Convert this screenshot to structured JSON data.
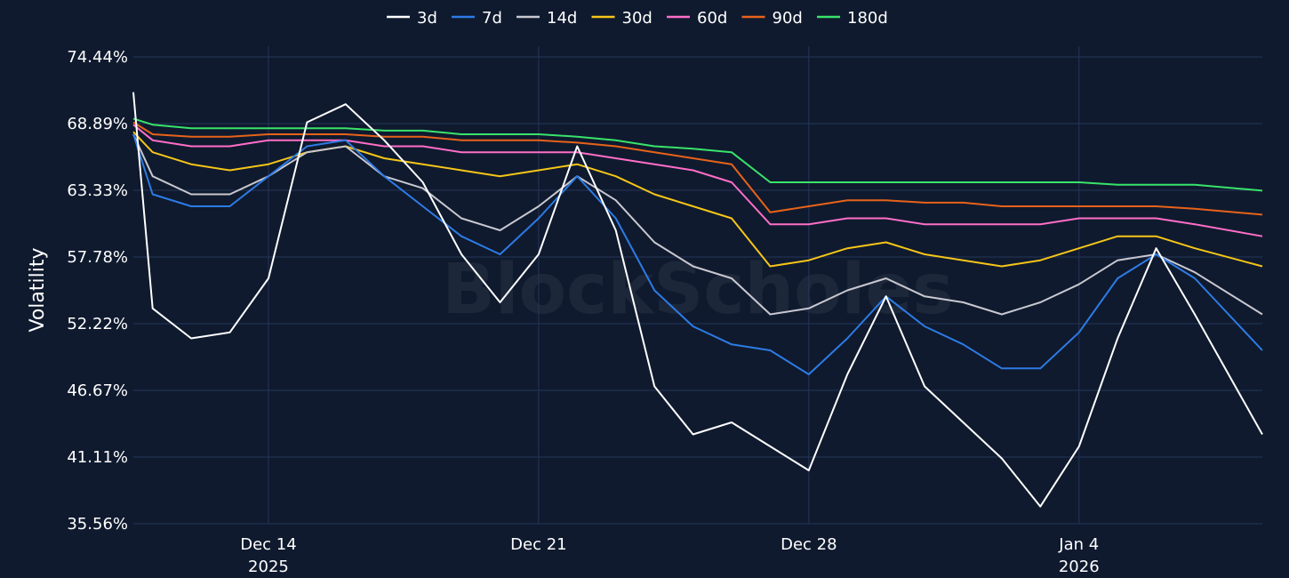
{
  "chart_data": {
    "type": "line",
    "title": "",
    "xlabel": "",
    "ylabel": "Volatility",
    "watermark": "BlockScholes",
    "legend_position": "top-center",
    "grid": true,
    "x": [
      "2025-12-10",
      "2025-12-11",
      "2025-12-12",
      "2025-12-13",
      "2025-12-14",
      "2025-12-15",
      "2025-12-16",
      "2025-12-17",
      "2025-12-18",
      "2025-12-19",
      "2025-12-20",
      "2025-12-21",
      "2025-12-22",
      "2025-12-23",
      "2025-12-24",
      "2025-12-25",
      "2025-12-26",
      "2025-12-27",
      "2025-12-28",
      "2025-12-29",
      "2025-12-30",
      "2025-12-31",
      "2026-01-01",
      "2026-01-02",
      "2026-01-03",
      "2026-01-04",
      "2026-01-05",
      "2026-01-06",
      "2026-01-07",
      "2026-01-08"
    ],
    "x_range": [
      "2025-12-10T12:00",
      "2026-01-08T18:00"
    ],
    "x_ticks": [
      {
        "x": "2025-12-14",
        "line1": "Dec 14",
        "line2": "2025"
      },
      {
        "x": "2025-12-21",
        "line1": "Dec 21",
        "line2": ""
      },
      {
        "x": "2025-12-28",
        "line1": "Dec 28",
        "line2": ""
      },
      {
        "x": "2026-01-04",
        "line1": "Jan 4",
        "line2": "2026"
      }
    ],
    "ylim": [
      35.56,
      74.44
    ],
    "y_ticks": [
      "35.56%",
      "41.11%",
      "46.67%",
      "52.22%",
      "57.78%",
      "63.33%",
      "68.89%",
      "74.44%"
    ],
    "series": [
      {
        "name": "3d",
        "color": "#ffffff",
        "values": [
          71.5,
          53.5,
          51.0,
          51.5,
          56.0,
          69.0,
          70.5,
          67.5,
          64.0,
          58.0,
          54.0,
          58.0,
          67.0,
          60.0,
          47.0,
          43.0,
          44.0,
          42.0,
          40.0,
          48.0,
          54.5,
          47.0,
          44.0,
          41.0,
          37.0,
          42.0,
          51.0,
          58.5,
          53.0,
          43.0
        ]
      },
      {
        "name": "7d",
        "color": "#2d7be5",
        "values": [
          68.0,
          63.0,
          62.0,
          62.0,
          64.5,
          67.0,
          67.5,
          64.5,
          62.0,
          59.5,
          58.0,
          61.0,
          64.5,
          61.0,
          55.0,
          52.0,
          50.5,
          50.0,
          48.0,
          51.0,
          54.5,
          52.0,
          50.5,
          48.5,
          48.5,
          51.5,
          56.0,
          58.0,
          56.0,
          50.0
        ]
      },
      {
        "name": "14d",
        "color": "#c8c8d0",
        "values": [
          68.0,
          64.5,
          63.0,
          63.0,
          64.5,
          66.5,
          67.0,
          64.5,
          63.5,
          61.0,
          60.0,
          62.0,
          64.5,
          62.5,
          59.0,
          57.0,
          56.0,
          53.0,
          53.5,
          55.0,
          56.0,
          54.5,
          54.0,
          53.0,
          54.0,
          55.5,
          57.5,
          58.0,
          56.5,
          53.0
        ]
      },
      {
        "name": "30d",
        "color": "#f5c518",
        "values": [
          68.2,
          66.5,
          65.5,
          65.0,
          65.5,
          66.5,
          67.0,
          66.0,
          65.5,
          65.0,
          64.5,
          65.0,
          65.5,
          64.5,
          63.0,
          62.0,
          61.0,
          57.0,
          57.5,
          58.5,
          59.0,
          58.0,
          57.5,
          57.0,
          57.5,
          58.5,
          59.5,
          59.5,
          58.5,
          57.0
        ]
      },
      {
        "name": "60d",
        "color": "#ff6ec7",
        "values": [
          68.8,
          67.5,
          67.0,
          67.0,
          67.5,
          67.5,
          67.5,
          67.0,
          67.0,
          66.5,
          66.5,
          66.5,
          66.5,
          66.0,
          65.5,
          65.0,
          64.0,
          60.5,
          60.5,
          61.0,
          61.0,
          60.5,
          60.5,
          60.5,
          60.5,
          61.0,
          61.0,
          61.0,
          60.5,
          59.5
        ]
      },
      {
        "name": "90d",
        "color": "#e8621a",
        "values": [
          69.0,
          68.0,
          67.8,
          67.8,
          68.0,
          68.0,
          68.0,
          67.8,
          67.8,
          67.5,
          67.5,
          67.5,
          67.3,
          67.0,
          66.5,
          66.0,
          65.5,
          61.5,
          62.0,
          62.5,
          62.5,
          62.3,
          62.3,
          62.0,
          62.0,
          62.0,
          62.0,
          62.0,
          61.8,
          61.3
        ]
      },
      {
        "name": "180d",
        "color": "#39e36a",
        "values": [
          69.3,
          68.8,
          68.5,
          68.5,
          68.5,
          68.5,
          68.5,
          68.3,
          68.3,
          68.0,
          68.0,
          68.0,
          67.8,
          67.5,
          67.0,
          66.8,
          66.5,
          64.0,
          64.0,
          64.0,
          64.0,
          64.0,
          64.0,
          64.0,
          64.0,
          64.0,
          63.8,
          63.8,
          63.8,
          63.3
        ]
      }
    ]
  }
}
